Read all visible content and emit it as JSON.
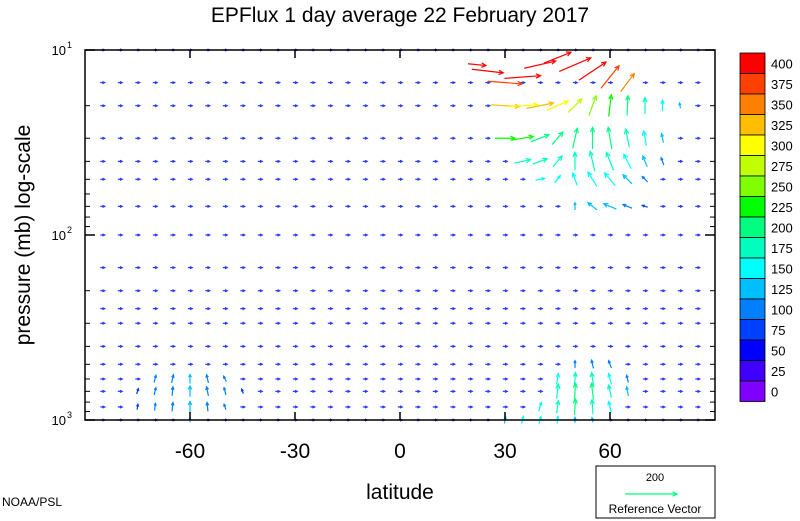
{
  "chart_data": {
    "type": "quiver",
    "title": "EPFlux  1 day average  22 February  2017",
    "xlabel": "latitude",
    "ylabel": "pressure (mb)  log-scale",
    "xlim": [
      -90,
      90
    ],
    "ylim": [
      1000,
      10
    ],
    "yscale": "log",
    "xticks": [
      {
        "value": -60,
        "label": "-60"
      },
      {
        "value": -30,
        "label": "-30"
      },
      {
        "value": 0,
        "label": "0"
      },
      {
        "value": 30,
        "label": "30"
      },
      {
        "value": 60,
        "label": "60"
      }
    ],
    "yticks": [
      {
        "value": 10,
        "base": "10",
        "exp": "1"
      },
      {
        "value": 100,
        "base": "10",
        "exp": "2"
      },
      {
        "value": 1000,
        "base": "10",
        "exp": "3"
      }
    ],
    "colorbar": {
      "levels": [
        "400",
        "375",
        "350",
        "325",
        "300",
        "275",
        "250",
        "225",
        "200",
        "175",
        "150",
        "125",
        "100",
        "75",
        "50",
        "25",
        "0"
      ],
      "colors": [
        "#ff0000",
        "#ff4000",
        "#ff8000",
        "#ffbf00",
        "#ffff00",
        "#bfff00",
        "#80ff00",
        "#00ff00",
        "#00ff80",
        "#00ffbf",
        "#00ffff",
        "#00bfff",
        "#0080ff",
        "#0040ff",
        "#0000ff",
        "#4000ff",
        "#7f00ff"
      ]
    },
    "reference_vector": {
      "magnitude": "200",
      "label": "Reference Vector",
      "color": "#00ff80"
    },
    "pressure_levels": [
      10,
      15,
      20,
      30,
      40,
      50,
      70,
      100,
      150,
      200,
      250,
      300,
      400,
      500,
      600,
      700,
      850,
      1000
    ],
    "latitudes": [
      -85,
      -80,
      -75,
      -70,
      -65,
      -60,
      -55,
      -50,
      -45,
      -40,
      -35,
      -30,
      -25,
      -20,
      -15,
      -10,
      -5,
      0,
      5,
      10,
      15,
      20,
      25,
      30,
      35,
      40,
      45,
      50,
      55,
      60,
      65,
      70,
      75,
      80,
      85
    ],
    "vectors": [
      {
        "lat": 22,
        "p": 12,
        "u": 2.0,
        "v": -0.2,
        "mag": 400
      },
      {
        "lat": 25,
        "p": 13,
        "u": 3.5,
        "v": -0.4,
        "mag": 400
      },
      {
        "lat": 30,
        "p": 15,
        "u": 3.8,
        "v": -0.3,
        "mag": 375
      },
      {
        "lat": 35,
        "p": 14,
        "u": 4.0,
        "v": 0.3,
        "mag": 400
      },
      {
        "lat": 40,
        "p": 12,
        "u": 3.5,
        "v": 0.8,
        "mag": 400
      },
      {
        "lat": 45,
        "p": 11,
        "u": 3.0,
        "v": 1.2,
        "mag": 400
      },
      {
        "lat": 50,
        "p": 12,
        "u": 3.5,
        "v": 1.5,
        "mag": 400
      },
      {
        "lat": 55,
        "p": 13,
        "u": 3.0,
        "v": 2.0,
        "mag": 400
      },
      {
        "lat": 60,
        "p": 14,
        "u": 2.0,
        "v": 2.5,
        "mag": 375
      },
      {
        "lat": 65,
        "p": 15,
        "u": 1.5,
        "v": 2.0,
        "mag": 350
      },
      {
        "lat": 30,
        "p": 20,
        "u": 3.2,
        "v": -0.2,
        "mag": 325
      },
      {
        "lat": 35,
        "p": 20,
        "u": 3.4,
        "v": 0.2,
        "mag": 300
      },
      {
        "lat": 40,
        "p": 20,
        "u": 3.0,
        "v": 0.6,
        "mag": 325
      },
      {
        "lat": 45,
        "p": 20,
        "u": 2.4,
        "v": 1.0,
        "mag": 300
      },
      {
        "lat": 50,
        "p": 20,
        "u": 1.5,
        "v": 1.5,
        "mag": 275
      },
      {
        "lat": 55,
        "p": 20,
        "u": 0.8,
        "v": 2.2,
        "mag": 250
      },
      {
        "lat": 60,
        "p": 20,
        "u": 0.3,
        "v": 2.4,
        "mag": 225
      },
      {
        "lat": 65,
        "p": 20,
        "u": 0.1,
        "v": 2.2,
        "mag": 200
      },
      {
        "lat": 70,
        "p": 20,
        "u": 0.0,
        "v": 1.8,
        "mag": 175
      },
      {
        "lat": 75,
        "p": 20,
        "u": 0.0,
        "v": 1.2,
        "mag": 150
      },
      {
        "lat": 80,
        "p": 20,
        "u": -0.1,
        "v": 0.6,
        "mag": 125
      },
      {
        "lat": 30,
        "p": 30,
        "u": 2.2,
        "v": 0.0,
        "mag": 225
      },
      {
        "lat": 35,
        "p": 30,
        "u": 2.4,
        "v": 0.4,
        "mag": 225
      },
      {
        "lat": 40,
        "p": 30,
        "u": 2.0,
        "v": 0.8,
        "mag": 200
      },
      {
        "lat": 45,
        "p": 30,
        "u": 1.2,
        "v": 1.4,
        "mag": 200
      },
      {
        "lat": 50,
        "p": 30,
        "u": 0.5,
        "v": 2.2,
        "mag": 200
      },
      {
        "lat": 55,
        "p": 30,
        "u": 0.0,
        "v": 2.4,
        "mag": 200
      },
      {
        "lat": 60,
        "p": 30,
        "u": -0.4,
        "v": 2.4,
        "mag": 200
      },
      {
        "lat": 65,
        "p": 30,
        "u": -0.4,
        "v": 2.0,
        "mag": 175
      },
      {
        "lat": 70,
        "p": 30,
        "u": -0.3,
        "v": 1.6,
        "mag": 150
      },
      {
        "lat": 75,
        "p": 30,
        "u": -0.2,
        "v": 1.0,
        "mag": 125
      },
      {
        "lat": 35,
        "p": 40,
        "u": 1.8,
        "v": 0.4,
        "mag": 175
      },
      {
        "lat": 40,
        "p": 40,
        "u": 1.6,
        "v": 0.6,
        "mag": 175
      },
      {
        "lat": 45,
        "p": 40,
        "u": 1.0,
        "v": 1.2,
        "mag": 175
      },
      {
        "lat": 50,
        "p": 40,
        "u": 0.0,
        "v": 2.0,
        "mag": 175
      },
      {
        "lat": 55,
        "p": 40,
        "u": -0.5,
        "v": 2.2,
        "mag": 175
      },
      {
        "lat": 60,
        "p": 40,
        "u": -0.8,
        "v": 2.0,
        "mag": 175
      },
      {
        "lat": 65,
        "p": 40,
        "u": -0.8,
        "v": 1.6,
        "mag": 150
      },
      {
        "lat": 70,
        "p": 40,
        "u": -0.5,
        "v": 1.2,
        "mag": 125
      },
      {
        "lat": 75,
        "p": 40,
        "u": -0.3,
        "v": 0.8,
        "mag": 100
      },
      {
        "lat": 40,
        "p": 50,
        "u": 1.0,
        "v": 0.2,
        "mag": 150
      },
      {
        "lat": 45,
        "p": 50,
        "u": 0.6,
        "v": 0.8,
        "mag": 150
      },
      {
        "lat": 50,
        "p": 50,
        "u": -0.5,
        "v": 1.4,
        "mag": 150
      },
      {
        "lat": 55,
        "p": 50,
        "u": -1.0,
        "v": 1.6,
        "mag": 150
      },
      {
        "lat": 60,
        "p": 50,
        "u": -1.2,
        "v": 1.4,
        "mag": 150
      },
      {
        "lat": 65,
        "p": 50,
        "u": -1.0,
        "v": 1.0,
        "mag": 125
      },
      {
        "lat": 70,
        "p": 50,
        "u": -0.6,
        "v": 0.6,
        "mag": 100
      },
      {
        "lat": 50,
        "p": 70,
        "u": 0.0,
        "v": 0.8,
        "mag": 125
      },
      {
        "lat": 55,
        "p": 70,
        "u": -1.0,
        "v": 0.8,
        "mag": 125
      },
      {
        "lat": 60,
        "p": 70,
        "u": -1.4,
        "v": 0.6,
        "mag": 125
      },
      {
        "lat": 65,
        "p": 70,
        "u": -1.0,
        "v": 0.4,
        "mag": 100
      },
      {
        "lat": 70,
        "p": 70,
        "u": -0.6,
        "v": 0.2,
        "mag": 75
      },
      {
        "lat": 50,
        "p": 500,
        "u": 0.0,
        "v": 0.8,
        "mag": 100
      },
      {
        "lat": 55,
        "p": 500,
        "u": -0.2,
        "v": 0.9,
        "mag": 100
      },
      {
        "lat": 60,
        "p": 500,
        "u": -0.3,
        "v": 0.8,
        "mag": 100
      },
      {
        "lat": 45,
        "p": 600,
        "u": 0.2,
        "v": 1.2,
        "mag": 150
      },
      {
        "lat": 50,
        "p": 600,
        "u": 0.1,
        "v": 1.4,
        "mag": 175
      },
      {
        "lat": 55,
        "p": 600,
        "u": -0.2,
        "v": 1.4,
        "mag": 175
      },
      {
        "lat": 60,
        "p": 600,
        "u": -0.3,
        "v": 1.2,
        "mag": 150
      },
      {
        "lat": 65,
        "p": 600,
        "u": -0.2,
        "v": 0.8,
        "mag": 100
      },
      {
        "lat": 45,
        "p": 700,
        "u": 0.2,
        "v": 1.6,
        "mag": 175
      },
      {
        "lat": 50,
        "p": 700,
        "u": 0.1,
        "v": 1.8,
        "mag": 200
      },
      {
        "lat": 55,
        "p": 700,
        "u": -0.2,
        "v": 1.8,
        "mag": 200
      },
      {
        "lat": 60,
        "p": 700,
        "u": -0.3,
        "v": 1.4,
        "mag": 175
      },
      {
        "lat": 65,
        "p": 700,
        "u": -0.2,
        "v": 1.0,
        "mag": 125
      },
      {
        "lat": 40,
        "p": 850,
        "u": 0.3,
        "v": 1.0,
        "mag": 150
      },
      {
        "lat": 45,
        "p": 850,
        "u": 0.2,
        "v": 1.4,
        "mag": 175
      },
      {
        "lat": 50,
        "p": 850,
        "u": 0.1,
        "v": 1.8,
        "mag": 200
      },
      {
        "lat": 55,
        "p": 850,
        "u": -0.1,
        "v": 1.6,
        "mag": 175
      },
      {
        "lat": 60,
        "p": 850,
        "u": -0.3,
        "v": 1.2,
        "mag": 150
      },
      {
        "lat": 30,
        "p": 1000,
        "u": 0.1,
        "v": 0.8,
        "mag": 125
      },
      {
        "lat": 35,
        "p": 1000,
        "u": 0.2,
        "v": 0.8,
        "mag": 150
      },
      {
        "lat": 40,
        "p": 1000,
        "u": 0.2,
        "v": 0.8,
        "mag": 150
      },
      {
        "lat": 45,
        "p": 1000,
        "u": 0.1,
        "v": 0.8,
        "mag": 150
      },
      {
        "lat": 50,
        "p": 1000,
        "u": 0.0,
        "v": 0.6,
        "mag": 125
      },
      {
        "lat": 55,
        "p": 1000,
        "u": -0.1,
        "v": 0.5,
        "mag": 125
      },
      {
        "lat": -70,
        "p": 600,
        "u": 0.2,
        "v": 0.8,
        "mag": 100
      },
      {
        "lat": -65,
        "p": 600,
        "u": 0.2,
        "v": 0.9,
        "mag": 100
      },
      {
        "lat": -60,
        "p": 600,
        "u": 0.0,
        "v": 1.0,
        "mag": 125
      },
      {
        "lat": -55,
        "p": 600,
        "u": -0.2,
        "v": 0.9,
        "mag": 100
      },
      {
        "lat": -50,
        "p": 600,
        "u": -0.3,
        "v": 0.6,
        "mag": 100
      },
      {
        "lat": -75,
        "p": 700,
        "u": 0.2,
        "v": 0.6,
        "mag": 75
      },
      {
        "lat": -70,
        "p": 700,
        "u": 0.2,
        "v": 0.8,
        "mag": 100
      },
      {
        "lat": -65,
        "p": 700,
        "u": 0.1,
        "v": 1.0,
        "mag": 100
      },
      {
        "lat": -60,
        "p": 700,
        "u": 0.0,
        "v": 1.2,
        "mag": 125
      },
      {
        "lat": -55,
        "p": 700,
        "u": -0.2,
        "v": 1.0,
        "mag": 100
      },
      {
        "lat": -50,
        "p": 700,
        "u": -0.2,
        "v": 0.8,
        "mag": 100
      },
      {
        "lat": -45,
        "p": 700,
        "u": -0.2,
        "v": 0.5,
        "mag": 75
      },
      {
        "lat": -75,
        "p": 850,
        "u": 0.1,
        "v": 0.6,
        "mag": 75
      },
      {
        "lat": -70,
        "p": 850,
        "u": 0.1,
        "v": 0.8,
        "mag": 100
      },
      {
        "lat": -65,
        "p": 850,
        "u": 0.1,
        "v": 1.0,
        "mag": 100
      },
      {
        "lat": -60,
        "p": 850,
        "u": 0.0,
        "v": 1.2,
        "mag": 125
      },
      {
        "lat": -55,
        "p": 850,
        "u": -0.1,
        "v": 1.0,
        "mag": 100
      },
      {
        "lat": -50,
        "p": 850,
        "u": -0.2,
        "v": 0.6,
        "mag": 100
      },
      {
        "lat": -60,
        "p": 1000,
        "u": 0.0,
        "v": 0.5,
        "mag": 125
      }
    ]
  },
  "footer": {
    "credit": "NOAA/PSL"
  }
}
